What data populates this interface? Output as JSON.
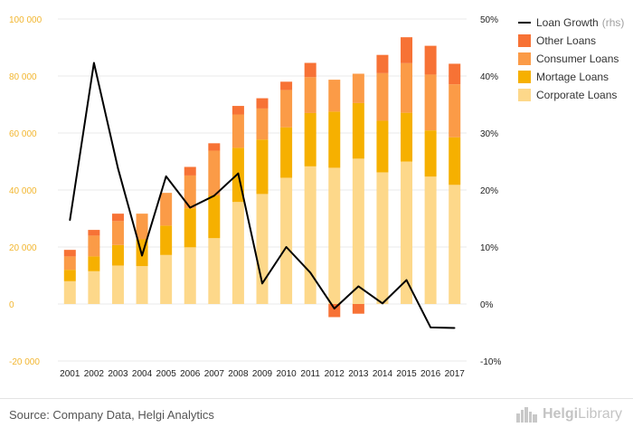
{
  "chart_data": {
    "type": "bar",
    "categories": [
      "2001",
      "2002",
      "2003",
      "2004",
      "2005",
      "2006",
      "2007",
      "2008",
      "2009",
      "2010",
      "2011",
      "2012",
      "2013",
      "2014",
      "2015",
      "2016",
      "2017"
    ],
    "series": [
      {
        "name": "Corporate Loans",
        "type": "bar",
        "axis": "left",
        "color": "#fdd88a",
        "values": [
          8000,
          11500,
          13500,
          13300,
          17200,
          19900,
          23100,
          35800,
          38600,
          44300,
          48300,
          47800,
          51000,
          46200,
          50000,
          44700,
          41800
        ]
      },
      {
        "name": "Mortage Loans",
        "type": "bar",
        "axis": "left",
        "color": "#f6b000",
        "values": [
          4000,
          5200,
          7200,
          9400,
          10300,
          13700,
          15000,
          19000,
          19100,
          17700,
          18700,
          19700,
          19500,
          18100,
          17100,
          16200,
          16700
        ]
      },
      {
        "name": "Consumer Loans",
        "type": "bar",
        "axis": "left",
        "color": "#fb9b47",
        "values": [
          4700,
          7300,
          8400,
          9000,
          11500,
          11500,
          15700,
          11700,
          10900,
          13100,
          12600,
          11200,
          10300,
          16700,
          17400,
          19600,
          18600
        ]
      },
      {
        "name": "Other Loans",
        "type": "bar",
        "axis": "left",
        "color": "#f77235",
        "values": [
          2300,
          2000,
          2600,
          0,
          0,
          3000,
          2600,
          3000,
          3600,
          2900,
          5000,
          -4600,
          -3400,
          6400,
          9100,
          10100,
          7200
        ]
      },
      {
        "name": "Loan Growth",
        "legend_note": "(rhs)",
        "type": "line",
        "axis": "right",
        "color": "#000000",
        "values": [
          14.7,
          42.3,
          23.8,
          8.5,
          22.4,
          16.9,
          19.0,
          22.9,
          3.6,
          10.0,
          5.5,
          -0.8,
          3.1,
          0.1,
          4.2,
          -4.1,
          -4.2
        ]
      }
    ],
    "ylim_left": [
      -20000,
      100000
    ],
    "ylim_right": [
      -10,
      50
    ],
    "yticks_left": [
      "-20 000",
      "0",
      "20 000",
      "40 000",
      "60 000",
      "80 000",
      "100 000"
    ],
    "yticks_right": [
      "-10%",
      "0%",
      "10%",
      "20%",
      "30%",
      "40%",
      "50%"
    ],
    "grid": true,
    "legend_position": "top-right",
    "title": "",
    "xlabel": "",
    "ylabel": ""
  },
  "colors": {
    "left_axis_text": "#f2b630",
    "right_axis_text": "#222222",
    "grid": "#e8e8e8"
  },
  "footer": {
    "source": "Source: Company Data, Helgi Analytics",
    "brand_a": "Helgi",
    "brand_b": "Library"
  }
}
